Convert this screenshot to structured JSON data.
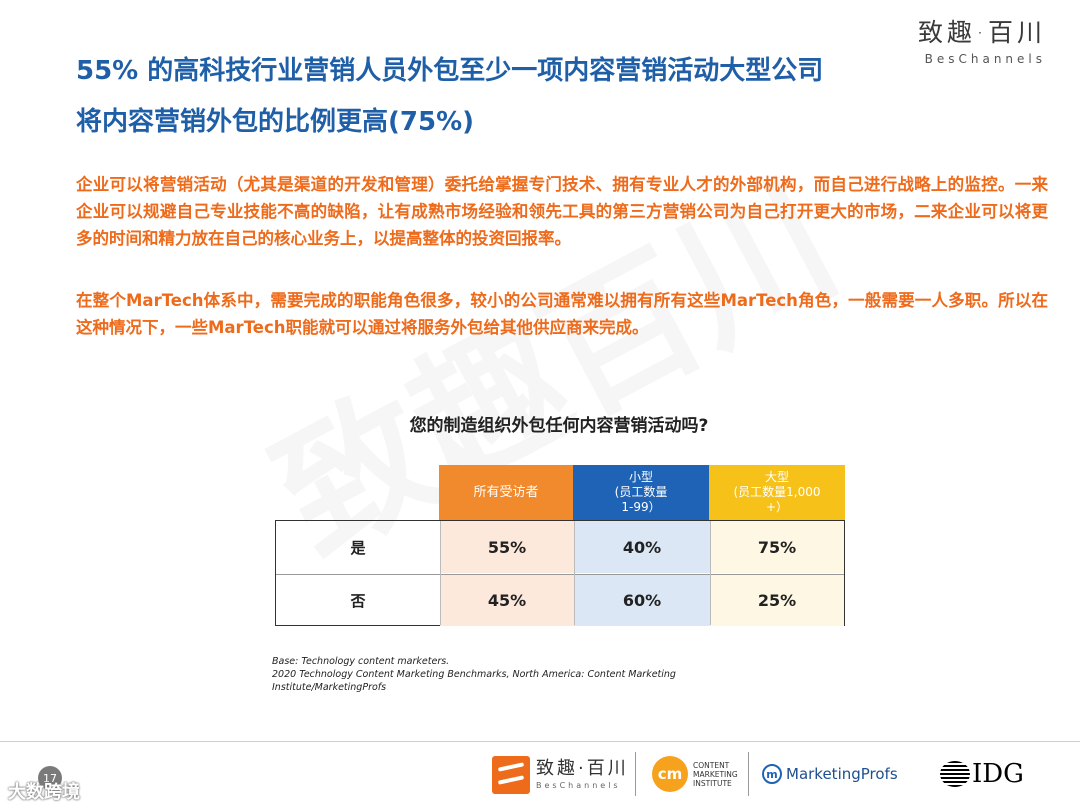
{
  "brand": {
    "cn": "致趣·百川",
    "en": "BesChannels"
  },
  "title": {
    "line1": "55% 的高科技行业营销人员外包至少一项内容营销活动大型公司",
    "line2": "将内容营销外包的比例更高(75%)"
  },
  "paragraphs": [
    "企业可以将营销活动（尤其是渠道的开发和管理）委托给掌握专门技术、拥有专业人才的外部机构，而自己进行战略上的监控。一来企业可以规避自己专业技能不高的缺陷，让有成熟市场经验和领先工具的第三方营销公司为自己打开更大的市场，二来企业可以将更多的时间和精力放在自己的核心业务上，以提高整体的投资回报率。",
    "在整个MarTech体系中，需要完成的职能角色很多，较小的公司通常难以拥有所有这些MarTech角色，一般需要一人多职。所以在这种情况下，一些MarTech职能就可以通过将服务外包给其他供应商来完成。"
  ],
  "watermark": "致趣百川",
  "question": "您的制造组织外包任何内容营销活动吗?",
  "table": {
    "headers": {
      "all": "所有受访者",
      "small": {
        "line1": "小型",
        "line2": "(员工数量",
        "line3": "1-99）"
      },
      "large": {
        "line1": "大型",
        "line2": "(员工数量1,000",
        "line3": "+）"
      }
    },
    "rows": [
      {
        "label": "是",
        "all": "55%",
        "small": "40%",
        "large": "75%"
      },
      {
        "label": "否",
        "all": "45%",
        "small": "60%",
        "large": "25%"
      }
    ]
  },
  "source": {
    "line1": "Base: Technology content marketers.",
    "line2": "2020 Technology Content Marketing Benchmarks, North America: Content Marketing Institute/MarketingProfs"
  },
  "footer": {
    "page_number": "17",
    "bottom_watermark": "大数跨境",
    "logos": {
      "bes_cn": "致趣·百川",
      "bes_en": "BesChannels",
      "cmi_mark": "cm",
      "cmi_text": [
        "CONTENT",
        "MARKETING",
        "INSTITUTE"
      ],
      "mp_mark": "m",
      "mp_text": "MarketingProfs",
      "idg_text": "IDG"
    }
  },
  "colors": {
    "title_blue": "#1f5fa8",
    "body_orange": "#ee6b1c",
    "header_orange": "#f08a2c",
    "header_blue": "#1e63b5",
    "header_yellow": "#f6c21a"
  }
}
